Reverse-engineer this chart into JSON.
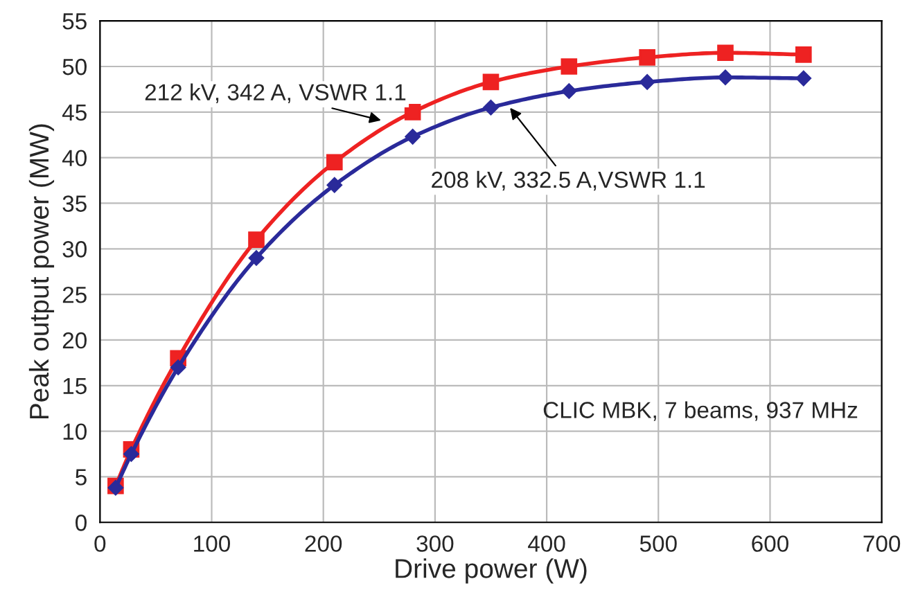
{
  "chart_data": {
    "type": "line",
    "xlabel": "Drive power (W)",
    "ylabel": "Peak output power (MW)",
    "x": [
      14,
      28,
      70,
      140,
      210,
      280,
      350,
      420,
      490,
      560,
      630
    ],
    "series": [
      {
        "color": "#ee2222",
        "marker": "square",
        "values": [
          4,
          8,
          18,
          31,
          39.5,
          45,
          48.3,
          50,
          51,
          51.5,
          51.3
        ]
      },
      {
        "color": "#2a2a9a",
        "marker": "diamond",
        "values": [
          3.8,
          7.5,
          17,
          29,
          37,
          42.3,
          45.5,
          47.3,
          48.3,
          48.8,
          48.7
        ]
      }
    ],
    "xlim": [
      0,
      700
    ],
    "xticks": [
      0,
      100,
      200,
      300,
      400,
      500,
      600,
      700
    ],
    "ylim": [
      0,
      55
    ],
    "yticks": [
      0,
      5,
      10,
      15,
      20,
      25,
      30,
      35,
      40,
      45,
      50,
      55
    ],
    "grid": true,
    "legend": false,
    "line_style": "solid",
    "annotations": [
      {
        "text": "212 kV, 342 A, VSWR 1.1",
        "x": 255,
        "y": 44
      },
      {
        "text": "208 kV, 332.5 A,VSWR 1.1",
        "x": 365,
        "y": 45.8
      },
      "CLIC MBK, 7 beams, 937 MHz"
    ]
  }
}
